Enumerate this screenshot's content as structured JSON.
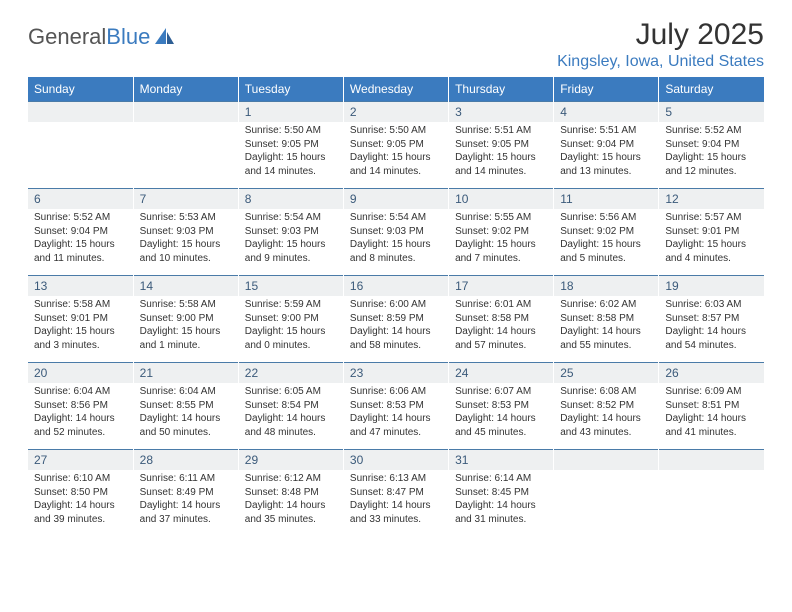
{
  "brand": {
    "part1": "General",
    "part2": "Blue"
  },
  "title": "July 2025",
  "location": "Kingsley, Iowa, United States",
  "colors": {
    "header_bg": "#3b7bbf",
    "header_text": "#ffffff",
    "daynum_bg": "#eef0f1",
    "daynum_text": "#3b5a7a",
    "divider": "#4a7ba8",
    "body_text": "#333333",
    "location_text": "#3b7bbf",
    "logo_gray": "#555555"
  },
  "day_headers": [
    "Sunday",
    "Monday",
    "Tuesday",
    "Wednesday",
    "Thursday",
    "Friday",
    "Saturday"
  ],
  "weeks": [
    {
      "nums": [
        "",
        "",
        "1",
        "2",
        "3",
        "4",
        "5"
      ],
      "cells": [
        {
          "sunrise": "",
          "sunset": "",
          "daylight": ""
        },
        {
          "sunrise": "",
          "sunset": "",
          "daylight": ""
        },
        {
          "sunrise": "Sunrise: 5:50 AM",
          "sunset": "Sunset: 9:05 PM",
          "daylight": "Daylight: 15 hours and 14 minutes."
        },
        {
          "sunrise": "Sunrise: 5:50 AM",
          "sunset": "Sunset: 9:05 PM",
          "daylight": "Daylight: 15 hours and 14 minutes."
        },
        {
          "sunrise": "Sunrise: 5:51 AM",
          "sunset": "Sunset: 9:05 PM",
          "daylight": "Daylight: 15 hours and 14 minutes."
        },
        {
          "sunrise": "Sunrise: 5:51 AM",
          "sunset": "Sunset: 9:04 PM",
          "daylight": "Daylight: 15 hours and 13 minutes."
        },
        {
          "sunrise": "Sunrise: 5:52 AM",
          "sunset": "Sunset: 9:04 PM",
          "daylight": "Daylight: 15 hours and 12 minutes."
        }
      ]
    },
    {
      "nums": [
        "6",
        "7",
        "8",
        "9",
        "10",
        "11",
        "12"
      ],
      "cells": [
        {
          "sunrise": "Sunrise: 5:52 AM",
          "sunset": "Sunset: 9:04 PM",
          "daylight": "Daylight: 15 hours and 11 minutes."
        },
        {
          "sunrise": "Sunrise: 5:53 AM",
          "sunset": "Sunset: 9:03 PM",
          "daylight": "Daylight: 15 hours and 10 minutes."
        },
        {
          "sunrise": "Sunrise: 5:54 AM",
          "sunset": "Sunset: 9:03 PM",
          "daylight": "Daylight: 15 hours and 9 minutes."
        },
        {
          "sunrise": "Sunrise: 5:54 AM",
          "sunset": "Sunset: 9:03 PM",
          "daylight": "Daylight: 15 hours and 8 minutes."
        },
        {
          "sunrise": "Sunrise: 5:55 AM",
          "sunset": "Sunset: 9:02 PM",
          "daylight": "Daylight: 15 hours and 7 minutes."
        },
        {
          "sunrise": "Sunrise: 5:56 AM",
          "sunset": "Sunset: 9:02 PM",
          "daylight": "Daylight: 15 hours and 5 minutes."
        },
        {
          "sunrise": "Sunrise: 5:57 AM",
          "sunset": "Sunset: 9:01 PM",
          "daylight": "Daylight: 15 hours and 4 minutes."
        }
      ]
    },
    {
      "nums": [
        "13",
        "14",
        "15",
        "16",
        "17",
        "18",
        "19"
      ],
      "cells": [
        {
          "sunrise": "Sunrise: 5:58 AM",
          "sunset": "Sunset: 9:01 PM",
          "daylight": "Daylight: 15 hours and 3 minutes."
        },
        {
          "sunrise": "Sunrise: 5:58 AM",
          "sunset": "Sunset: 9:00 PM",
          "daylight": "Daylight: 15 hours and 1 minute."
        },
        {
          "sunrise": "Sunrise: 5:59 AM",
          "sunset": "Sunset: 9:00 PM",
          "daylight": "Daylight: 15 hours and 0 minutes."
        },
        {
          "sunrise": "Sunrise: 6:00 AM",
          "sunset": "Sunset: 8:59 PM",
          "daylight": "Daylight: 14 hours and 58 minutes."
        },
        {
          "sunrise": "Sunrise: 6:01 AM",
          "sunset": "Sunset: 8:58 PM",
          "daylight": "Daylight: 14 hours and 57 minutes."
        },
        {
          "sunrise": "Sunrise: 6:02 AM",
          "sunset": "Sunset: 8:58 PM",
          "daylight": "Daylight: 14 hours and 55 minutes."
        },
        {
          "sunrise": "Sunrise: 6:03 AM",
          "sunset": "Sunset: 8:57 PM",
          "daylight": "Daylight: 14 hours and 54 minutes."
        }
      ]
    },
    {
      "nums": [
        "20",
        "21",
        "22",
        "23",
        "24",
        "25",
        "26"
      ],
      "cells": [
        {
          "sunrise": "Sunrise: 6:04 AM",
          "sunset": "Sunset: 8:56 PM",
          "daylight": "Daylight: 14 hours and 52 minutes."
        },
        {
          "sunrise": "Sunrise: 6:04 AM",
          "sunset": "Sunset: 8:55 PM",
          "daylight": "Daylight: 14 hours and 50 minutes."
        },
        {
          "sunrise": "Sunrise: 6:05 AM",
          "sunset": "Sunset: 8:54 PM",
          "daylight": "Daylight: 14 hours and 48 minutes."
        },
        {
          "sunrise": "Sunrise: 6:06 AM",
          "sunset": "Sunset: 8:53 PM",
          "daylight": "Daylight: 14 hours and 47 minutes."
        },
        {
          "sunrise": "Sunrise: 6:07 AM",
          "sunset": "Sunset: 8:53 PM",
          "daylight": "Daylight: 14 hours and 45 minutes."
        },
        {
          "sunrise": "Sunrise: 6:08 AM",
          "sunset": "Sunset: 8:52 PM",
          "daylight": "Daylight: 14 hours and 43 minutes."
        },
        {
          "sunrise": "Sunrise: 6:09 AM",
          "sunset": "Sunset: 8:51 PM",
          "daylight": "Daylight: 14 hours and 41 minutes."
        }
      ]
    },
    {
      "nums": [
        "27",
        "28",
        "29",
        "30",
        "31",
        "",
        ""
      ],
      "cells": [
        {
          "sunrise": "Sunrise: 6:10 AM",
          "sunset": "Sunset: 8:50 PM",
          "daylight": "Daylight: 14 hours and 39 minutes."
        },
        {
          "sunrise": "Sunrise: 6:11 AM",
          "sunset": "Sunset: 8:49 PM",
          "daylight": "Daylight: 14 hours and 37 minutes."
        },
        {
          "sunrise": "Sunrise: 6:12 AM",
          "sunset": "Sunset: 8:48 PM",
          "daylight": "Daylight: 14 hours and 35 minutes."
        },
        {
          "sunrise": "Sunrise: 6:13 AM",
          "sunset": "Sunset: 8:47 PM",
          "daylight": "Daylight: 14 hours and 33 minutes."
        },
        {
          "sunrise": "Sunrise: 6:14 AM",
          "sunset": "Sunset: 8:45 PM",
          "daylight": "Daylight: 14 hours and 31 minutes."
        },
        {
          "sunrise": "",
          "sunset": "",
          "daylight": ""
        },
        {
          "sunrise": "",
          "sunset": "",
          "daylight": ""
        }
      ]
    }
  ]
}
